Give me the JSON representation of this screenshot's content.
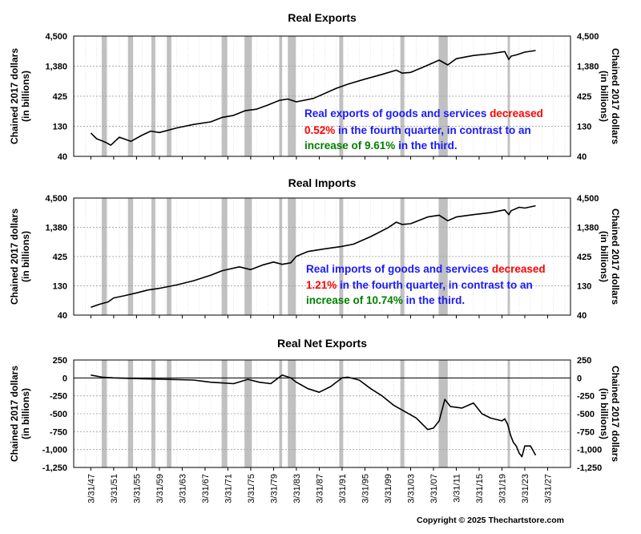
{
  "copyright": "Copyright © 2025 Thechartstore.com",
  "colors": {
    "recession_band": "#c0c0c0",
    "line": "#000000",
    "annotation_blue": "#1a1aff",
    "annotation_red": "#ff0000",
    "annotation_green": "#008000",
    "grid": "#a0a0a0"
  },
  "recessions": [
    {
      "start": 1948.9,
      "end": 1949.8
    },
    {
      "start": 1953.5,
      "end": 1954.4
    },
    {
      "start": 1957.6,
      "end": 1958.3
    },
    {
      "start": 1960.3,
      "end": 1961.1
    },
    {
      "start": 1969.9,
      "end": 1970.9
    },
    {
      "start": 1973.9,
      "end": 1975.2
    },
    {
      "start": 1980.0,
      "end": 1980.5
    },
    {
      "start": 1981.5,
      "end": 1982.9
    },
    {
      "start": 1990.5,
      "end": 1991.2
    },
    {
      "start": 2001.2,
      "end": 2001.9
    },
    {
      "start": 2007.9,
      "end": 2009.5
    },
    {
      "start": 2020.0,
      "end": 2020.4
    }
  ],
  "chart_data": [
    {
      "type": "line",
      "title": "Real Exports",
      "ylabel": "Chained 2017 dollars\n(in billions)",
      "y_scale": "log",
      "ylim": [
        40,
        4500
      ],
      "yticks": [
        4500,
        1380,
        425,
        130,
        40
      ],
      "ytick_labels": [
        "4,500",
        "1,380",
        "425",
        "130",
        "40"
      ],
      "xlim": [
        1944,
        2031
      ],
      "annotation": [
        [
          {
            "text": "Real exports of goods and services ",
            "color": "blue"
          },
          {
            "text": "decreased",
            "color": "red"
          }
        ],
        [
          {
            "text": "0.52%",
            "color": "red"
          },
          {
            "text": " in the fourth quarter, in contrast to an",
            "color": "blue"
          }
        ],
        [
          {
            "text": "increase of 9.61%",
            "color": "green"
          },
          {
            "text": " in the  third.",
            "color": "blue"
          }
        ]
      ],
      "series": [
        {
          "x": [
            1947.0,
            1948.0,
            1949.5,
            1950.5,
            1952.0,
            1954.0,
            1956.0,
            1957.5,
            1959.0,
            1962.0,
            1965.0,
            1968.0,
            1970.0,
            1972.0,
            1974.0,
            1976.0,
            1978.0,
            1980.0,
            1981.5,
            1983.0,
            1986.0,
            1990.0,
            1992.0,
            1995.0,
            1998.0,
            2000.5,
            2001.5,
            2003.0,
            2005.0,
            2008.0,
            2009.5,
            2011.0,
            2014.0,
            2017.0,
            2019.5,
            2020.2,
            2020.6,
            2021.5,
            2023.0,
            2024.9
          ],
          "y": [
            100,
            80,
            70,
            62,
            85,
            72,
            92,
            108,
            102,
            122,
            140,
            155,
            185,
            200,
            240,
            255,
            300,
            360,
            380,
            340,
            390,
            580,
            680,
            830,
            1000,
            1180,
            1050,
            1080,
            1300,
            1750,
            1450,
            1850,
            2100,
            2250,
            2450,
            1800,
            2050,
            2150,
            2400,
            2550
          ]
        }
      ]
    },
    {
      "type": "line",
      "title": "Real Imports",
      "ylabel": "Chained 2017 dollars\n(in billions)",
      "y_scale": "log",
      "ylim": [
        40,
        4500
      ],
      "yticks": [
        4500,
        1380,
        425,
        130,
        40
      ],
      "ytick_labels": [
        "4,500",
        "1,380",
        "425",
        "130",
        "40"
      ],
      "xlim": [
        1944,
        2031
      ],
      "annotation": [
        [
          {
            "text": "Real imports of goods and services ",
            "color": "blue"
          },
          {
            "text": "decreased",
            "color": "red"
          }
        ],
        [
          {
            "text": "1.21%",
            "color": "red"
          },
          {
            "text": " in the fourth quarter, in contrast to an",
            "color": "blue"
          }
        ],
        [
          {
            "text": "increase of 10.74%",
            "color": "green"
          },
          {
            "text": " in the  third.",
            "color": "blue"
          }
        ]
      ],
      "series": [
        {
          "x": [
            1947.0,
            1948.5,
            1950.0,
            1951.0,
            1953.0,
            1955.0,
            1957.0,
            1959.0,
            1962.0,
            1965.0,
            1968.0,
            1970.0,
            1973.0,
            1975.0,
            1977.0,
            1979.0,
            1980.5,
            1982.0,
            1983.0,
            1985.0,
            1988.0,
            1991.0,
            1993.0,
            1996.0,
            1999.0,
            2000.5,
            2001.5,
            2003.0,
            2006.0,
            2008.0,
            2009.5,
            2011.0,
            2014.0,
            2017.0,
            2019.5,
            2020.2,
            2020.6,
            2022.0,
            2023.0,
            2024.9
          ],
          "y": [
            55,
            62,
            68,
            80,
            88,
            98,
            110,
            118,
            135,
            160,
            200,
            240,
            280,
            250,
            300,
            340,
            310,
            330,
            430,
            520,
            580,
            640,
            700,
            950,
            1350,
            1700,
            1550,
            1600,
            2100,
            2250,
            1800,
            2100,
            2300,
            2500,
            2800,
            2300,
            2700,
            3100,
            3000,
            3300
          ]
        }
      ]
    },
    {
      "type": "line",
      "title": "Real Net Exports",
      "ylabel": "Chained 2017 dollars\n(in billions)",
      "y_scale": "linear",
      "ylim": [
        -1250,
        250
      ],
      "yticks": [
        250,
        0,
        -250,
        -500,
        -750,
        -1000,
        -1250
      ],
      "ytick_labels": [
        "250",
        "0",
        "-250",
        "-500",
        "-750",
        "-1,000",
        "-1,250"
      ],
      "xlim": [
        1944,
        2031
      ],
      "zero_line": true,
      "x_tick_labels": [
        "3/31/47",
        "3/31/51",
        "3/31/55",
        "3/31/59",
        "3/31/63",
        "3/31/67",
        "3/31/71",
        "3/31/75",
        "3/31/79",
        "3/31/83",
        "3/31/87",
        "3/31/91",
        "3/31/95",
        "3/31/99",
        "3/31/03",
        "3/31/07",
        "3/31/11",
        "3/31/15",
        "3/31/19",
        "3/31/23",
        "3/31/27"
      ],
      "x_tick_values": [
        1947,
        1951,
        1955,
        1959,
        1963,
        1967,
        1971,
        1975,
        1979,
        1983,
        1987,
        1991,
        1995,
        1999,
        2003,
        2007,
        2011,
        2015,
        2019,
        2023,
        2027
      ],
      "series": [
        {
          "x": [
            1947.0,
            1949.0,
            1951.0,
            1955.0,
            1960.0,
            1965.0,
            1968.0,
            1970.0,
            1972.0,
            1974.5,
            1976.5,
            1978.5,
            1980.5,
            1982.0,
            1983.0,
            1985.0,
            1987.0,
            1989.0,
            1991.0,
            1992.0,
            1994.0,
            1996.0,
            1998.0,
            2000.0,
            2002.0,
            2004.0,
            2006.0,
            2007.0,
            2008.0,
            2009.0,
            2010.0,
            2012.0,
            2014.0,
            2015.5,
            2017.0,
            2019.0,
            2019.5,
            2020.0,
            2020.5,
            2021.0,
            2021.5,
            2022.0,
            2022.5,
            2023.0,
            2024.0,
            2024.9
          ],
          "y": [
            40,
            10,
            0,
            -10,
            -20,
            -30,
            -60,
            -70,
            -80,
            -20,
            -60,
            -80,
            40,
            0,
            -60,
            -150,
            -200,
            -120,
            0,
            10,
            -30,
            -150,
            -250,
            -380,
            -470,
            -560,
            -720,
            -700,
            -600,
            -300,
            -400,
            -420,
            -350,
            -500,
            -560,
            -600,
            -570,
            -650,
            -800,
            -900,
            -950,
            -1050,
            -1100,
            -950,
            -950,
            -1080
          ]
        }
      ]
    }
  ]
}
